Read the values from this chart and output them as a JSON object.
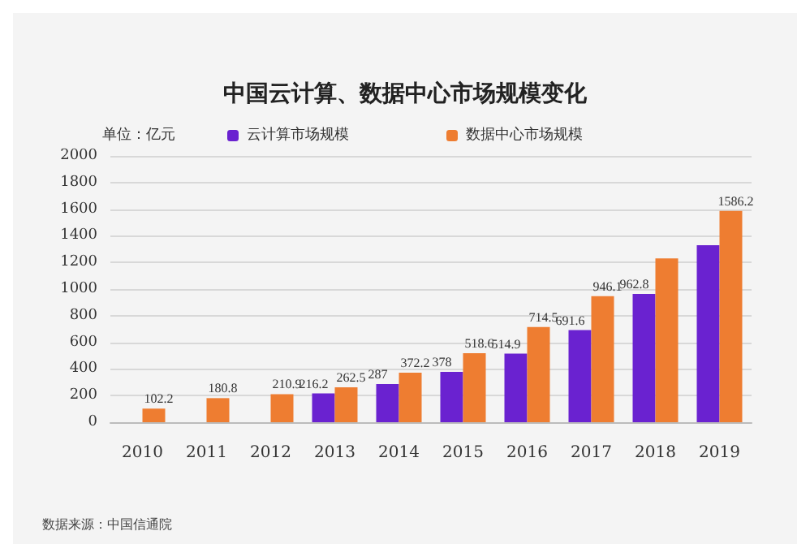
{
  "chart_data": {
    "type": "bar",
    "title": "中国云计算、数据中心市场规模变化",
    "ylabel": "单位：亿元",
    "categories": [
      "2010",
      "2011",
      "2012",
      "2013",
      "2014",
      "2015",
      "2016",
      "2017",
      "2018",
      "2019"
    ],
    "series": [
      {
        "name": "云计算市场规模",
        "color": "#6a22d0",
        "values": [
          null,
          null,
          null,
          216.2,
          287,
          378,
          514.9,
          691.6,
          962.8,
          1330
        ],
        "value_labels": [
          null,
          null,
          null,
          "216.2",
          "287",
          "378",
          "514.9",
          "691.6",
          "962.8",
          null
        ]
      },
      {
        "name": "数据中心市场规模",
        "color": "#ee7d31",
        "values": [
          102.2,
          180.8,
          210.9,
          262.5,
          372.2,
          518.6,
          714.5,
          946.1,
          1230,
          1586.2
        ],
        "value_labels": [
          "102.2",
          "180.8",
          "210.9",
          "262.5",
          "372.2",
          "518.6",
          "714.5",
          "946.1",
          null,
          "1586.2"
        ]
      }
    ],
    "ylim": [
      0,
      2000
    ],
    "yticks": [
      0,
      200,
      400,
      600,
      800,
      1000,
      1200,
      1400,
      1600,
      1800,
      2000
    ],
    "grid": "y",
    "legend": "top",
    "annotations": [
      "数据来源：中国信通院"
    ]
  }
}
